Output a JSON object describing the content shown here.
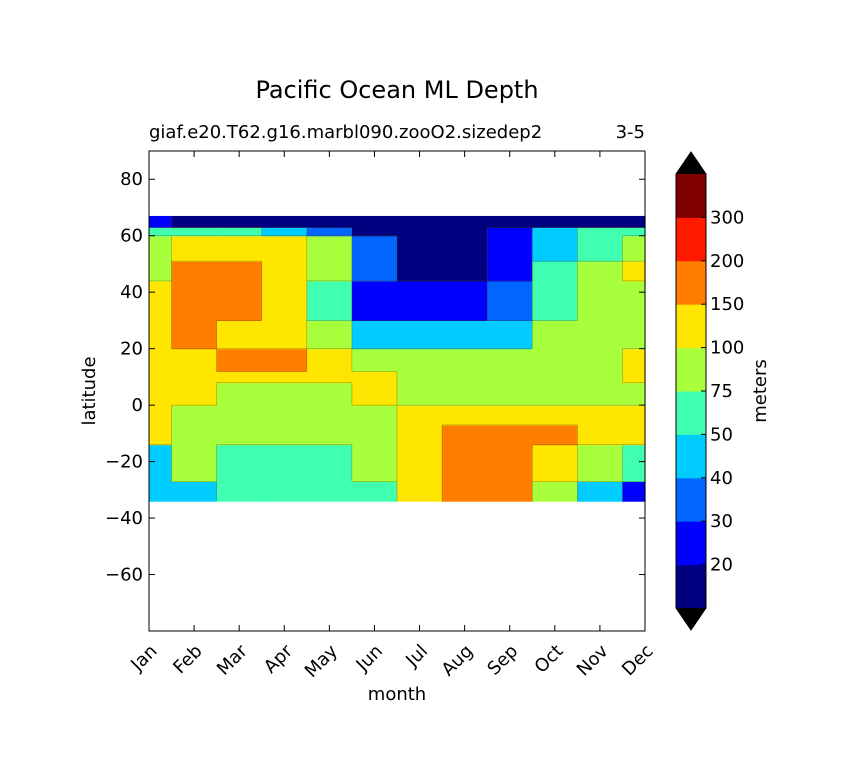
{
  "chart_data": {
    "type": "contour",
    "title": "Pacific Ocean ML Depth",
    "subtitle_left": "giaf.e20.T62.g16.marbl090.zooO2.sizedep2",
    "subtitle_right": "3-5",
    "xlabel": "month",
    "ylabel": "latitude",
    "xlim": [
      0,
      11
    ],
    "ylim": [
      -80,
      90
    ],
    "x_categories": [
      "Jan",
      "Feb",
      "Mar",
      "Apr",
      "May",
      "Jun",
      "Jul",
      "Aug",
      "Sep",
      "Oct",
      "Nov",
      "Dec"
    ],
    "y_ticks": [
      80,
      60,
      40,
      20,
      0,
      -20,
      -40,
      -60
    ],
    "y_tick_labels": [
      "80",
      "60",
      "40",
      "20",
      "0",
      "−20",
      "−40",
      "−60"
    ],
    "data_lat_range": [
      -34,
      67
    ],
    "colorbar": {
      "label": "meters",
      "levels": [
        10,
        20,
        30,
        40,
        50,
        75,
        100,
        150,
        200,
        300,
        400
      ],
      "tick_values": [
        20,
        30,
        40,
        50,
        75,
        100,
        150,
        200,
        300
      ],
      "tick_labels": [
        "20",
        "30",
        "40",
        "50",
        "75",
        "100",
        "150",
        "200",
        "300"
      ],
      "colors": [
        "#000080",
        "#0000ff",
        "#0066ff",
        "#00ccff",
        "#40ffb0",
        "#a8ff3c",
        "#ffe600",
        "#ff7e00",
        "#ff1a00",
        "#800000"
      ],
      "under_color": "#000000",
      "over_color": "#000000",
      "extend": "both"
    },
    "month_columns": [
      [
        [
          -34,
          -27,
          40
        ],
        [
          -27,
          -14,
          40
        ],
        [
          -14,
          -7,
          100
        ],
        [
          -7,
          0,
          100
        ],
        [
          0,
          8,
          100
        ],
        [
          8,
          12,
          100
        ],
        [
          12,
          20,
          100
        ],
        [
          20,
          30,
          100
        ],
        [
          30,
          44,
          100
        ],
        [
          44,
          51,
          75
        ],
        [
          51,
          60,
          75
        ],
        [
          60,
          63,
          50
        ],
        [
          63,
          67,
          20
        ]
      ],
      [
        [
          -34,
          -27,
          40
        ],
        [
          -27,
          -14,
          75
        ],
        [
          -14,
          -7,
          75
        ],
        [
          -7,
          0,
          75
        ],
        [
          0,
          8,
          100
        ],
        [
          8,
          12,
          100
        ],
        [
          12,
          20,
          100
        ],
        [
          20,
          30,
          150
        ],
        [
          30,
          44,
          150
        ],
        [
          44,
          51,
          150
        ],
        [
          51,
          60,
          100
        ],
        [
          60,
          63,
          50
        ],
        [
          63,
          67,
          10
        ]
      ],
      [
        [
          -34,
          -27,
          50
        ],
        [
          -27,
          -14,
          50
        ],
        [
          -14,
          -7,
          75
        ],
        [
          -7,
          0,
          75
        ],
        [
          0,
          8,
          75
        ],
        [
          8,
          12,
          100
        ],
        [
          12,
          20,
          150
        ],
        [
          20,
          30,
          100
        ],
        [
          30,
          44,
          150
        ],
        [
          44,
          51,
          150
        ],
        [
          51,
          60,
          100
        ],
        [
          60,
          63,
          50
        ],
        [
          63,
          67,
          10
        ]
      ],
      [
        [
          -34,
          -27,
          50
        ],
        [
          -27,
          -14,
          50
        ],
        [
          -14,
          -7,
          75
        ],
        [
          -7,
          0,
          75
        ],
        [
          0,
          8,
          75
        ],
        [
          8,
          12,
          100
        ],
        [
          12,
          20,
          150
        ],
        [
          20,
          30,
          100
        ],
        [
          30,
          44,
          100
        ],
        [
          44,
          51,
          100
        ],
        [
          51,
          60,
          100
        ],
        [
          60,
          63,
          40
        ],
        [
          63,
          67,
          10
        ]
      ],
      [
        [
          -34,
          -27,
          50
        ],
        [
          -27,
          -14,
          50
        ],
        [
          -14,
          -7,
          75
        ],
        [
          -7,
          0,
          75
        ],
        [
          0,
          8,
          75
        ],
        [
          8,
          12,
          100
        ],
        [
          12,
          20,
          100
        ],
        [
          20,
          30,
          75
        ],
        [
          30,
          44,
          50
        ],
        [
          44,
          51,
          75
        ],
        [
          51,
          60,
          75
        ],
        [
          60,
          63,
          30
        ],
        [
          63,
          67,
          10
        ]
      ],
      [
        [
          -34,
          -27,
          50
        ],
        [
          -27,
          -14,
          75
        ],
        [
          -14,
          -7,
          75
        ],
        [
          -7,
          0,
          75
        ],
        [
          0,
          8,
          100
        ],
        [
          8,
          12,
          100
        ],
        [
          12,
          20,
          75
        ],
        [
          20,
          30,
          40
        ],
        [
          30,
          44,
          20
        ],
        [
          44,
          51,
          30
        ],
        [
          51,
          60,
          30
        ],
        [
          60,
          63,
          10
        ],
        [
          63,
          67,
          10
        ]
      ],
      [
        [
          -34,
          -27,
          100
        ],
        [
          -27,
          -14,
          100
        ],
        [
          -14,
          -7,
          100
        ],
        [
          -7,
          0,
          100
        ],
        [
          0,
          8,
          75
        ],
        [
          8,
          12,
          75
        ],
        [
          12,
          20,
          75
        ],
        [
          20,
          30,
          40
        ],
        [
          30,
          44,
          20
        ],
        [
          44,
          51,
          10
        ],
        [
          51,
          60,
          10
        ],
        [
          60,
          63,
          10
        ],
        [
          63,
          67,
          10
        ]
      ],
      [
        [
          -34,
          -27,
          150
        ],
        [
          -27,
          -14,
          150
        ],
        [
          -14,
          -7,
          150
        ],
        [
          -7,
          0,
          100
        ],
        [
          0,
          8,
          75
        ],
        [
          8,
          12,
          75
        ],
        [
          12,
          20,
          75
        ],
        [
          20,
          30,
          40
        ],
        [
          30,
          44,
          20
        ],
        [
          44,
          51,
          10
        ],
        [
          51,
          60,
          10
        ],
        [
          60,
          63,
          10
        ],
        [
          63,
          67,
          10
        ]
      ],
      [
        [
          -34,
          -27,
          150
        ],
        [
          -27,
          -14,
          150
        ],
        [
          -14,
          -7,
          150
        ],
        [
          -7,
          0,
          100
        ],
        [
          0,
          8,
          75
        ],
        [
          8,
          12,
          75
        ],
        [
          12,
          20,
          75
        ],
        [
          20,
          30,
          40
        ],
        [
          30,
          44,
          30
        ],
        [
          44,
          51,
          20
        ],
        [
          51,
          60,
          20
        ],
        [
          60,
          63,
          20
        ],
        [
          63,
          67,
          10
        ]
      ],
      [
        [
          -34,
          -27,
          75
        ],
        [
          -27,
          -14,
          100
        ],
        [
          -14,
          -7,
          150
        ],
        [
          -7,
          0,
          100
        ],
        [
          0,
          8,
          75
        ],
        [
          8,
          12,
          75
        ],
        [
          12,
          20,
          75
        ],
        [
          20,
          30,
          75
        ],
        [
          30,
          44,
          50
        ],
        [
          44,
          51,
          50
        ],
        [
          51,
          60,
          40
        ],
        [
          60,
          63,
          40
        ],
        [
          63,
          67,
          10
        ]
      ],
      [
        [
          -34,
          -27,
          40
        ],
        [
          -27,
          -14,
          75
        ],
        [
          -14,
          -7,
          100
        ],
        [
          -7,
          0,
          100
        ],
        [
          0,
          8,
          75
        ],
        [
          8,
          12,
          75
        ],
        [
          12,
          20,
          75
        ],
        [
          20,
          30,
          75
        ],
        [
          30,
          44,
          75
        ],
        [
          44,
          51,
          75
        ],
        [
          51,
          60,
          50
        ],
        [
          60,
          63,
          50
        ],
        [
          63,
          67,
          10
        ]
      ],
      [
        [
          -34,
          -27,
          20
        ],
        [
          -27,
          -14,
          50
        ],
        [
          -14,
          -7,
          100
        ],
        [
          -7,
          0,
          100
        ],
        [
          0,
          8,
          75
        ],
        [
          8,
          12,
          100
        ],
        [
          12,
          20,
          100
        ],
        [
          20,
          30,
          75
        ],
        [
          30,
          44,
          75
        ],
        [
          44,
          51,
          100
        ],
        [
          51,
          60,
          75
        ],
        [
          60,
          63,
          50
        ],
        [
          63,
          67,
          10
        ]
      ]
    ]
  }
}
